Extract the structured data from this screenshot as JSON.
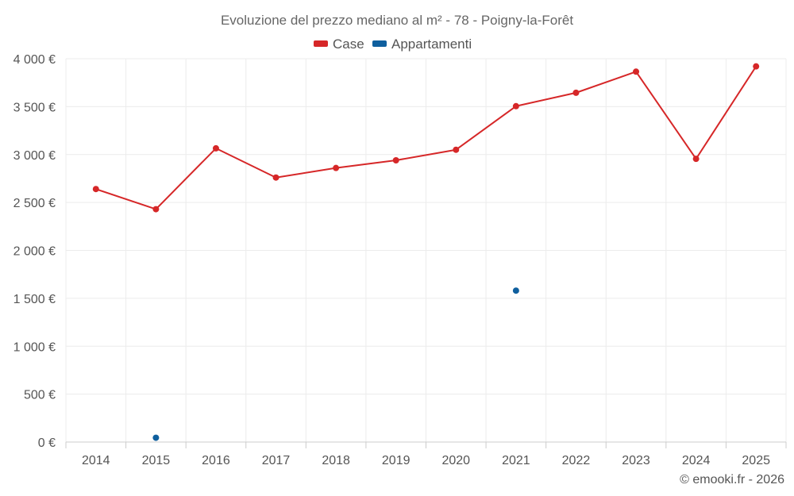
{
  "chart_data": {
    "type": "line",
    "title": "Evoluzione del prezzo mediano al m² - 78 - Poigny-la-Forêt",
    "categories": [
      "2014",
      "2015",
      "2016",
      "2017",
      "2018",
      "2019",
      "2020",
      "2021",
      "2022",
      "2023",
      "2024",
      "2025"
    ],
    "ylim": [
      0,
      4000
    ],
    "y_ticks": [
      0,
      500,
      1000,
      1500,
      2000,
      2500,
      3000,
      3500,
      4000
    ],
    "y_tick_labels": [
      "0 €",
      "500 €",
      "1 000 €",
      "1 500 €",
      "2 000 €",
      "2 500 €",
      "3 000 €",
      "3 500 €",
      "4 000 €"
    ],
    "grid": true,
    "legend_position": "top-center",
    "series": [
      {
        "name": "Case",
        "color": "#d62728",
        "values": [
          2640,
          2430,
          3065,
          2760,
          2860,
          2940,
          3050,
          3505,
          3645,
          3865,
          2955,
          3920
        ]
      },
      {
        "name": "Appartamenti",
        "color": "#0f5f9e",
        "values": [
          null,
          45,
          null,
          null,
          null,
          null,
          null,
          1580,
          null,
          null,
          null,
          null
        ]
      }
    ]
  },
  "credit": "© emooki.fr - 2026"
}
